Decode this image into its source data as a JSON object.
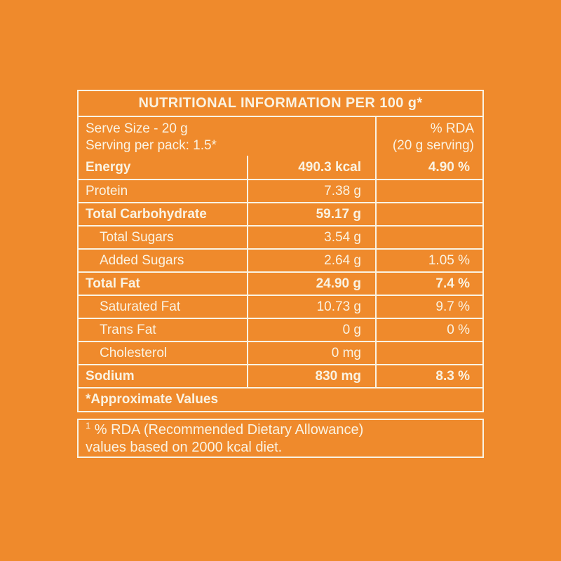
{
  "colors": {
    "background": "#EF8A2C",
    "foreground": "#FAF3E3"
  },
  "table": {
    "title": "NUTRITIONAL INFORMATION PER 100 g*",
    "serve_info": {
      "line1": "Serve Size - 20 g",
      "line2": "Serving per pack: 1.5*"
    },
    "rda_header": {
      "line1": "% RDA",
      "line2": "(20 g serving)"
    },
    "rows": [
      {
        "label": "Energy",
        "value": "490.3 kcal",
        "rda": "4.90 %",
        "bold": true,
        "indent": false
      },
      {
        "label": "Protein",
        "value": "7.38 g",
        "rda": "",
        "bold": false,
        "indent": false
      },
      {
        "label": "Total Carbohydrate",
        "value": "59.17 g",
        "rda": "",
        "bold": true,
        "indent": false
      },
      {
        "label": "Total Sugars",
        "value": "3.54 g",
        "rda": "",
        "bold": false,
        "indent": true
      },
      {
        "label": "Added Sugars",
        "value": "2.64 g",
        "rda": "1.05 %",
        "bold": false,
        "indent": true
      },
      {
        "label": "Total Fat",
        "value": "24.90 g",
        "rda": "7.4 %",
        "bold": true,
        "indent": false
      },
      {
        "label": "Saturated Fat",
        "value": "10.73 g",
        "rda": "9.7 %",
        "bold": false,
        "indent": true
      },
      {
        "label": "Trans Fat",
        "value": "0 g",
        "rda": "0 %",
        "bold": false,
        "indent": true
      },
      {
        "label": "Cholesterol",
        "value": "0 mg",
        "rda": "",
        "bold": false,
        "indent": true
      },
      {
        "label": "Sodium",
        "value": "830 mg",
        "rda": "8.3 %",
        "bold": true,
        "indent": false
      }
    ],
    "footer": "*Approximate Values"
  },
  "footnote": {
    "superscript": "1",
    "line1": "% RDA (Recommended Dietary Allowance)",
    "line2": "values based on 2000 kcal diet."
  }
}
